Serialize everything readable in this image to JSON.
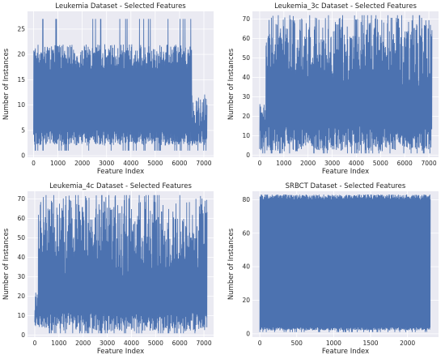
{
  "colors": {
    "line": "#4c72b0",
    "plot_bg": "#eaeaf2",
    "grid": "#ffffff",
    "text": "#262626"
  },
  "chart_data": [
    {
      "type": "line",
      "title": "Leukemia Dataset - Selected Features",
      "xlabel": "Feature Index",
      "ylabel": "Number of Instances",
      "xlim": [
        -250,
        7400
      ],
      "ylim": [
        -0.3,
        28.5
      ],
      "xticks": [
        0,
        1000,
        2000,
        3000,
        4000,
        5000,
        6000,
        7000
      ],
      "yticks": [
        0,
        5,
        10,
        15,
        20,
        25
      ],
      "grid": true,
      "series_profile": {
        "x_range": [
          0,
          7128
        ],
        "min_value": 1,
        "baseline_low": 2,
        "baseline_high": 5,
        "typical_peak": [
          17,
          22
        ],
        "max_value": 27,
        "low_dense_region": [
          6500,
          7128
        ]
      }
    },
    {
      "type": "line",
      "title": "Leukemia_3c Dataset - Selected Features",
      "xlabel": "Feature Index",
      "ylabel": "Number of Instances",
      "xlim": [
        -300,
        7400
      ],
      "ylim": [
        -1,
        74
      ],
      "xticks": [
        0,
        1000,
        2000,
        3000,
        4000,
        5000,
        6000,
        7000
      ],
      "yticks": [
        0,
        10,
        20,
        30,
        40,
        50,
        60,
        70
      ],
      "grid": true,
      "series_profile": {
        "x_range": [
          0,
          7128
        ],
        "min_value": 1,
        "baseline_low": 2,
        "baseline_high": 15,
        "typical_peak": [
          35,
          72
        ],
        "max_value": 72,
        "low_dense_region": [
          0,
          250
        ]
      }
    },
    {
      "type": "line",
      "title": "Leukemia_4c Dataset - Selected Features",
      "xlabel": "Feature Index",
      "ylabel": "Number of Instances",
      "xlim": [
        -300,
        7400
      ],
      "ylim": [
        -1,
        74
      ],
      "xticks": [
        0,
        1000,
        2000,
        3000,
        4000,
        5000,
        6000,
        7000
      ],
      "yticks": [
        0,
        10,
        20,
        30,
        40,
        50,
        60,
        70
      ],
      "grid": true,
      "series_profile": {
        "x_range": [
          0,
          7128
        ],
        "min_value": 1,
        "baseline_low": 2,
        "baseline_high": 12,
        "typical_peak": [
          30,
          72
        ],
        "max_value": 72,
        "low_dense_region": [
          0,
          150
        ]
      }
    },
    {
      "type": "line",
      "title": "SRBCT Dataset - Selected Features",
      "xlabel": "Feature Index",
      "ylabel": "Number of Instances",
      "xlim": [
        -100,
        2420
      ],
      "ylim": [
        -2,
        85
      ],
      "xticks": [
        0,
        500,
        1000,
        1500,
        2000
      ],
      "yticks": [
        0,
        20,
        40,
        60,
        80
      ],
      "grid": true,
      "series_profile": {
        "x_range": [
          0,
          2308
        ],
        "min_value": 1,
        "baseline_low": 2,
        "baseline_high": 4,
        "typical_peak": [
          80,
          83
        ],
        "max_value": 83,
        "low_dense_region": [
          0,
          0
        ]
      }
    }
  ]
}
